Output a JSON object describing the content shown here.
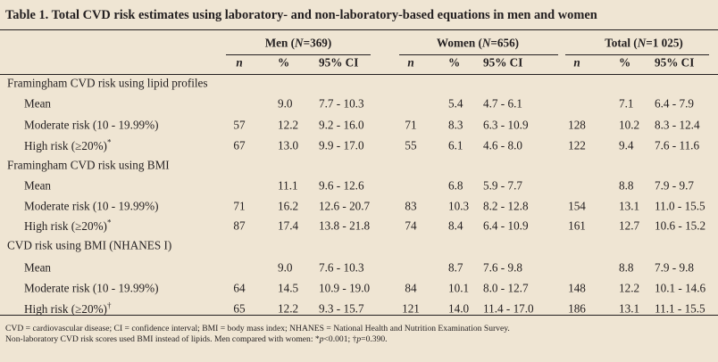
{
  "title": "Table 1. Total CVD risk estimates using laboratory- and non-laboratory-based equations in men and women",
  "groups": [
    {
      "label_pre": "Men (",
      "label_n": "N",
      "label_post": "=369)"
    },
    {
      "label_pre": "Women (",
      "label_n": "N",
      "label_post": "=656)"
    },
    {
      "label_pre": "Total (",
      "label_n": "N",
      "label_post": "=1 025)"
    }
  ],
  "subheaders": {
    "n": "n",
    "pct": "%",
    "ci": "95% CI"
  },
  "sections": [
    {
      "label": "Framingham CVD risk using lipid profiles",
      "rows": [
        {
          "label": "Mean",
          "mark": "",
          "cells": [
            [
              "",
              "9.0",
              "7.7 - 10.3"
            ],
            [
              "",
              "5.4",
              "4.7 - 6.1"
            ],
            [
              "",
              "7.1",
              "6.4 - 7.9"
            ]
          ]
        },
        {
          "label": "Moderate risk (10 - 19.99%)",
          "mark": "",
          "cells": [
            [
              "57",
              "12.2",
              "9.2 - 16.0"
            ],
            [
              "71",
              "8.3",
              "6.3 - 10.9"
            ],
            [
              "128",
              "10.2",
              "8.3 - 12.4"
            ]
          ]
        },
        {
          "label": "High risk (≥20%)",
          "mark": "*",
          "cells": [
            [
              "67",
              "13.0",
              "9.9 - 17.0"
            ],
            [
              "55",
              "6.1",
              "4.6 - 8.0"
            ],
            [
              "122",
              "9.4",
              "7.6 - 11.6"
            ]
          ]
        }
      ]
    },
    {
      "label": "Framingham CVD risk using BMI",
      "rows": [
        {
          "label": "Mean",
          "mark": "",
          "cells": [
            [
              "",
              "11.1",
              "9.6 - 12.6"
            ],
            [
              "",
              "6.8",
              "5.9 - 7.7"
            ],
            [
              "",
              "8.8",
              "7.9 - 9.7"
            ]
          ]
        },
        {
          "label": "Moderate risk (10 - 19.99%)",
          "mark": "",
          "cells": [
            [
              "71",
              "16.2",
              "12.6 - 20.7"
            ],
            [
              "83",
              "10.3",
              "8.2 - 12.8"
            ],
            [
              "154",
              "13.1",
              "11.0 - 15.5"
            ]
          ]
        },
        {
          "label": "High risk (≥20%)",
          "mark": "*",
          "cells": [
            [
              "87",
              "17.4",
              "13.8 - 21.8"
            ],
            [
              "74",
              "8.4",
              "6.4 - 10.9"
            ],
            [
              "161",
              "12.7",
              "10.6 - 15.2"
            ]
          ]
        }
      ]
    },
    {
      "label": "CVD risk using BMI (NHANES I)",
      "rows": [
        {
          "label": "Mean",
          "mark": "",
          "cells": [
            [
              "",
              "9.0",
              "7.6 - 10.3"
            ],
            [
              "",
              "8.7",
              "7.6 - 9.8"
            ],
            [
              "",
              "8.8",
              "7.9 - 9.8"
            ]
          ]
        },
        {
          "label": "Moderate risk (10 - 19.99%)",
          "mark": "",
          "cells": [
            [
              "64",
              "14.5",
              "10.9 - 19.0"
            ],
            [
              "84",
              "10.1",
              "8.0 - 12.7"
            ],
            [
              "148",
              "12.2",
              "10.1 - 14.6"
            ]
          ]
        },
        {
          "label": "High risk (≥20%)",
          "mark": "†",
          "cells": [
            [
              "65",
              "12.2",
              "9.3 - 15.7"
            ],
            [
              "121",
              "14.0",
              "11.4 - 17.0"
            ],
            [
              "186",
              "13.1",
              "11.1 - 15.5"
            ]
          ]
        }
      ]
    }
  ],
  "footnotes": {
    "line1": "CVD = cardiovascular disease; CI = confidence interval; BMI = body mass index; NHANES = National Health and Nutrition Examination Survey.",
    "line2_pre": "Non-laboratory CVD risk scores used BMI instead of lipids. Men compared with women: *",
    "line2_p1": "p",
    "line2_mid": "<0.001; †",
    "line2_p2": "p",
    "line2_post": "=0.390."
  }
}
